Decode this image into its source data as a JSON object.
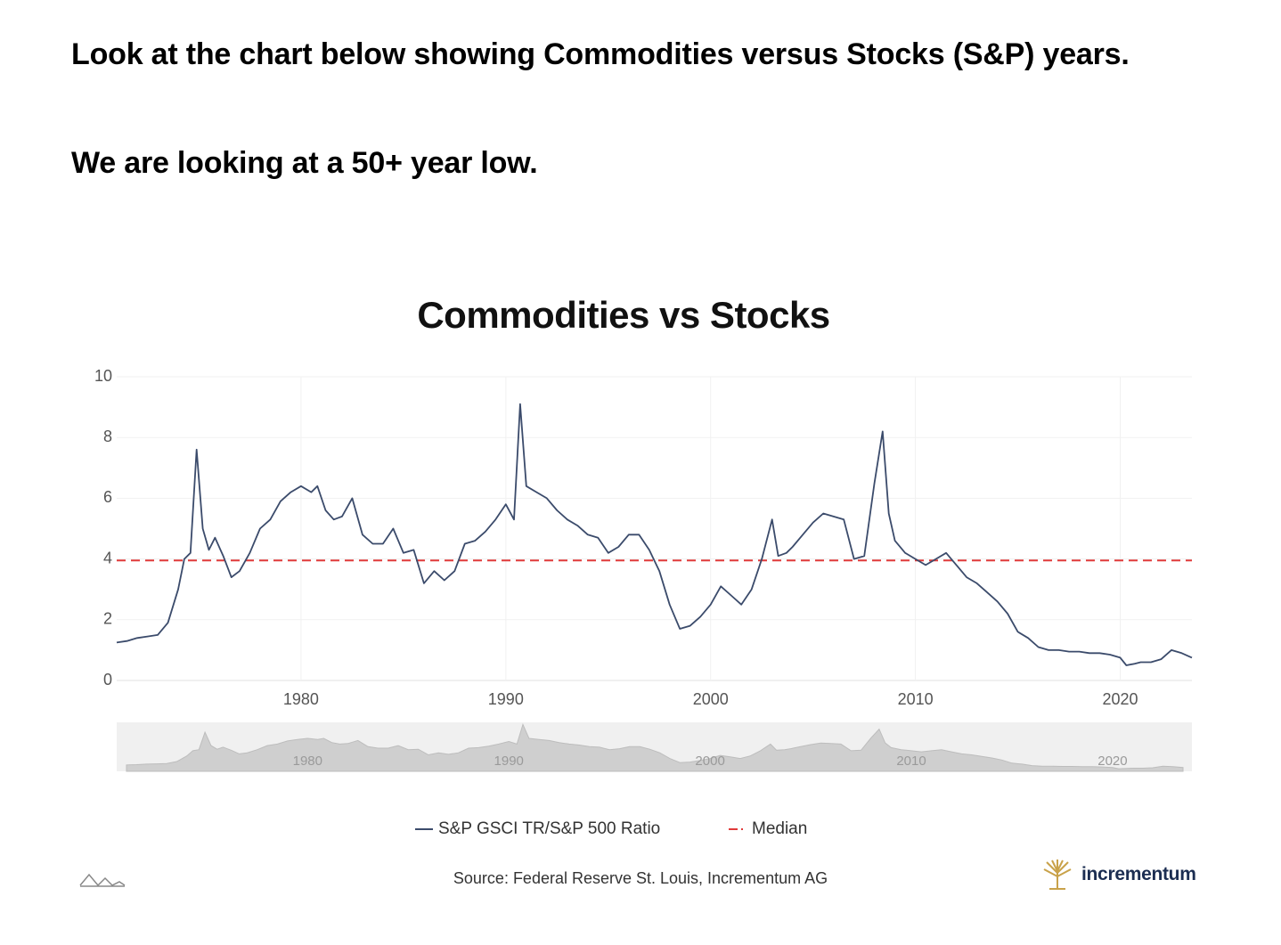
{
  "intro": {
    "line1": "Look at the chart below showing Commodities versus Stocks (S&P) years.",
    "line2": "We are looking at a 50+ year low."
  },
  "chart_data": {
    "type": "line",
    "title": "Commodities vs Stocks",
    "xlabel": "",
    "ylabel": "",
    "ylim": [
      0,
      10
    ],
    "xlim": [
      1971,
      2023.5
    ],
    "y_ticks": [
      "0",
      "2",
      "4",
      "6",
      "8",
      "10"
    ],
    "x_ticks": [
      "1980",
      "1990",
      "2000",
      "2010",
      "2020"
    ],
    "grid": true,
    "legend_position": "bottom",
    "series": [
      {
        "name": "S&P GSCI TR/S&P 500 Ratio",
        "color": "#3b4b6b",
        "x": [
          1971.0,
          1971.5,
          1972.0,
          1972.5,
          1973.0,
          1973.5,
          1974.0,
          1974.3,
          1974.6,
          1974.9,
          1975.2,
          1975.5,
          1975.8,
          1976.2,
          1976.6,
          1977.0,
          1977.5,
          1978.0,
          1978.5,
          1979.0,
          1979.5,
          1980.0,
          1980.5,
          1980.8,
          1981.2,
          1981.6,
          1982.0,
          1982.5,
          1983.0,
          1983.5,
          1984.0,
          1984.5,
          1985.0,
          1985.5,
          1986.0,
          1986.5,
          1987.0,
          1987.5,
          1988.0,
          1988.5,
          1989.0,
          1989.5,
          1990.0,
          1990.4,
          1990.7,
          1991.0,
          1991.5,
          1992.0,
          1992.5,
          1993.0,
          1993.5,
          1994.0,
          1994.5,
          1995.0,
          1995.5,
          1996.0,
          1996.5,
          1997.0,
          1997.5,
          1998.0,
          1998.5,
          1999.0,
          1999.5,
          2000.0,
          2000.5,
          2001.0,
          2001.5,
          2002.0,
          2002.5,
          2003.0,
          2003.3,
          2003.7,
          2004.0,
          2004.5,
          2005.0,
          2005.5,
          2006.0,
          2006.5,
          2007.0,
          2007.5,
          2008.0,
          2008.4,
          2008.7,
          2009.0,
          2009.5,
          2010.0,
          2010.5,
          2011.0,
          2011.5,
          2012.0,
          2012.5,
          2013.0,
          2013.5,
          2014.0,
          2014.5,
          2015.0,
          2015.5,
          2016.0,
          2016.5,
          2017.0,
          2017.5,
          2018.0,
          2018.5,
          2019.0,
          2019.5,
          2020.0,
          2020.3,
          2020.7,
          2021.0,
          2021.5,
          2022.0,
          2022.5,
          2023.0,
          2023.5
        ],
        "values": [
          1.25,
          1.3,
          1.4,
          1.45,
          1.5,
          1.9,
          3.0,
          4.0,
          4.2,
          7.6,
          5.0,
          4.3,
          4.7,
          4.1,
          3.4,
          3.6,
          4.2,
          5.0,
          5.3,
          5.9,
          6.2,
          6.4,
          6.2,
          6.4,
          5.6,
          5.3,
          5.4,
          6.0,
          4.8,
          4.5,
          4.5,
          5.0,
          4.2,
          4.3,
          3.2,
          3.6,
          3.3,
          3.6,
          4.5,
          4.6,
          4.9,
          5.3,
          5.8,
          5.3,
          9.1,
          6.4,
          6.2,
          6.0,
          5.6,
          5.3,
          5.1,
          4.8,
          4.7,
          4.2,
          4.4,
          4.8,
          4.8,
          4.3,
          3.6,
          2.5,
          1.7,
          1.8,
          2.1,
          2.5,
          3.1,
          2.8,
          2.5,
          3.0,
          4.0,
          5.3,
          4.1,
          4.2,
          4.4,
          4.8,
          5.2,
          5.5,
          5.4,
          5.3,
          4.0,
          4.1,
          6.5,
          8.2,
          5.5,
          4.6,
          4.2,
          4.0,
          3.8,
          4.0,
          4.2,
          3.8,
          3.4,
          3.2,
          2.9,
          2.6,
          2.2,
          1.6,
          1.4,
          1.1,
          1.0,
          1.0,
          0.95,
          0.95,
          0.9,
          0.9,
          0.85,
          0.75,
          0.5,
          0.55,
          0.6,
          0.6,
          0.7,
          1.0,
          0.9,
          0.75
        ]
      },
      {
        "name": "Median",
        "color": "#e03a3a",
        "style": "dashed",
        "values": [
          3.95
        ]
      }
    ],
    "navigator_ticks": [
      "1980",
      "1990",
      "2000",
      "2010",
      "2020"
    ],
    "source": "Source: Federal Reserve St. Louis, Incrementum AG",
    "brand": "incrementum"
  }
}
